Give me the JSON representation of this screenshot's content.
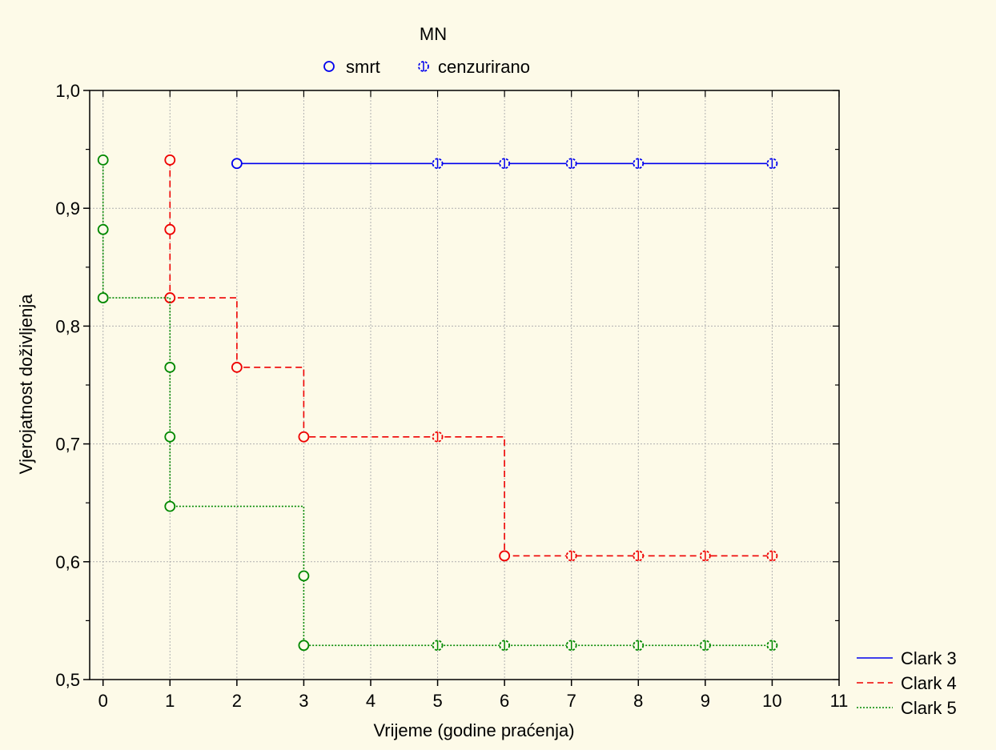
{
  "chart_data": {
    "type": "line",
    "title": "",
    "xlabel": "Vrijeme (godine praćenja)",
    "ylabel": "Vjerojatnost doživljenja",
    "xlim": [
      -0.2,
      11
    ],
    "ylim": [
      0.5,
      1.0
    ],
    "xticks": [
      0,
      1,
      2,
      3,
      4,
      5,
      6,
      7,
      8,
      9,
      10,
      11
    ],
    "xtick_labels": [
      "0",
      "1",
      "2",
      "3",
      "4",
      "5",
      "6",
      "7",
      "8",
      "9",
      "10",
      "11"
    ],
    "yticks": [
      0.5,
      0.6,
      0.7,
      0.8,
      0.9,
      1.0
    ],
    "ytick_labels": [
      "0,5",
      "0,6",
      "0,7",
      "0,8",
      "0,9",
      "1,0"
    ],
    "grid": true,
    "background_color": "#fdfae8",
    "marker_legend": {
      "title": "MN",
      "items": [
        {
          "label": "smrt",
          "style": "event"
        },
        {
          "label": "cenzurirano",
          "style": "censored"
        }
      ]
    },
    "series_legend_placement": "bottom-right",
    "series": [
      {
        "name": "Clark 3",
        "color": "#0000ee",
        "dash": "solid",
        "steps": [
          [
            2,
            0.938
          ],
          [
            10,
            0.938
          ]
        ],
        "events": [
          [
            2,
            0.938
          ]
        ],
        "censored": [
          [
            5,
            0.938
          ],
          [
            6,
            0.938
          ],
          [
            7,
            0.938
          ],
          [
            8,
            0.938
          ],
          [
            10,
            0.938
          ]
        ]
      },
      {
        "name": "Clark 4",
        "color": "#ee0000",
        "dash": "dashed",
        "steps": [
          [
            1,
            0.941
          ],
          [
            1,
            0.824
          ],
          [
            2,
            0.824
          ],
          [
            2,
            0.765
          ],
          [
            3,
            0.765
          ],
          [
            3,
            0.706
          ],
          [
            6,
            0.706
          ],
          [
            6,
            0.605
          ],
          [
            10,
            0.605
          ]
        ],
        "events": [
          [
            1,
            0.941
          ],
          [
            1,
            0.882
          ],
          [
            1,
            0.824
          ],
          [
            2,
            0.765
          ],
          [
            3,
            0.706
          ],
          [
            6,
            0.605
          ]
        ],
        "censored": [
          [
            5,
            0.706
          ],
          [
            7,
            0.605
          ],
          [
            8,
            0.605
          ],
          [
            9,
            0.605
          ],
          [
            10,
            0.605
          ]
        ]
      },
      {
        "name": "Clark 5",
        "color": "#008800",
        "dash": "dotted",
        "steps": [
          [
            0,
            0.941
          ],
          [
            0,
            0.824
          ],
          [
            1,
            0.824
          ],
          [
            1,
            0.647
          ],
          [
            3,
            0.647
          ],
          [
            3,
            0.529
          ],
          [
            10,
            0.529
          ]
        ],
        "events": [
          [
            0,
            0.941
          ],
          [
            0,
            0.882
          ],
          [
            0,
            0.824
          ],
          [
            1,
            0.765
          ],
          [
            1,
            0.706
          ],
          [
            1,
            0.647
          ],
          [
            3,
            0.588
          ],
          [
            3,
            0.529
          ]
        ],
        "censored": [
          [
            5,
            0.529
          ],
          [
            6,
            0.529
          ],
          [
            7,
            0.529
          ],
          [
            8,
            0.529
          ],
          [
            9,
            0.529
          ],
          [
            10,
            0.529
          ]
        ]
      }
    ]
  }
}
